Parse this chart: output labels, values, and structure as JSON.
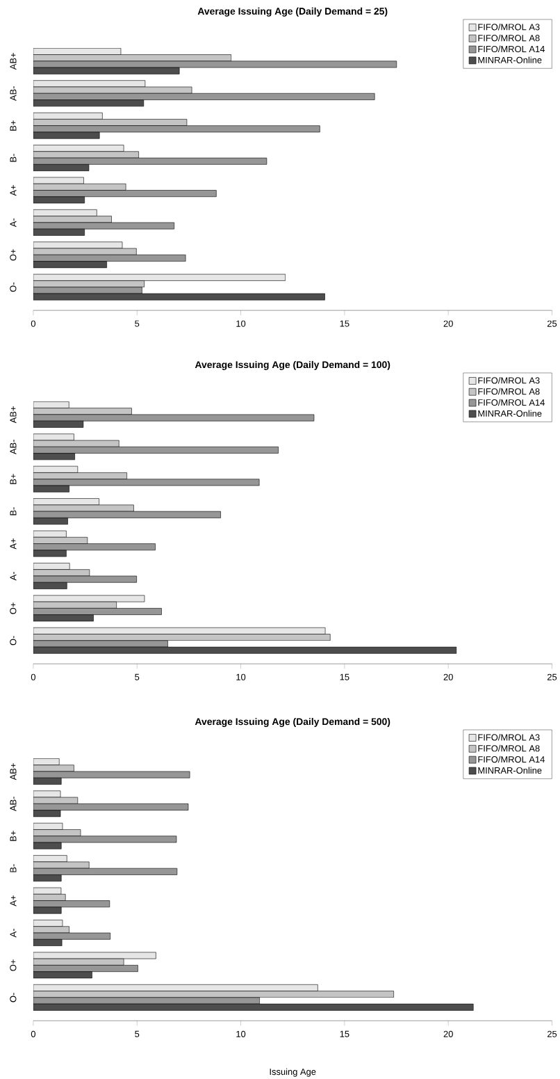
{
  "chart_data": [
    {
      "type": "bar",
      "orientation": "horizontal",
      "title": "Average Issuing Age (Daily Demand = 25)",
      "categories": [
        "AB+",
        "AB-",
        "B+",
        "B-",
        "A+",
        "A-",
        "O+",
        "O-"
      ],
      "xlim": [
        0,
        25
      ],
      "xticks": [
        0,
        5,
        10,
        15,
        20,
        25
      ],
      "legend": "top right",
      "series": [
        {
          "name": "FIFO/MROL A3",
          "color": "#e6e6e6",
          "values": [
            4.22,
            5.39,
            3.33,
            4.36,
            2.43,
            3.06,
            4.29,
            12.15
          ]
        },
        {
          "name": "FIFO/MROL A8",
          "color": "#c4c4c4",
          "values": [
            9.54,
            7.64,
            7.4,
            5.08,
            4.46,
            3.77,
            4.97,
            5.35
          ]
        },
        {
          "name": "FIFO/MROL A14",
          "color": "#969696",
          "values": [
            17.51,
            16.45,
            13.81,
            11.25,
            8.82,
            6.79,
            7.34,
            5.24
          ]
        },
        {
          "name": "MINRAR-Online",
          "color": "#4d4d4d",
          "values": [
            7.04,
            5.32,
            3.19,
            2.68,
            2.47,
            2.47,
            3.54,
            14.05
          ]
        }
      ]
    },
    {
      "type": "bar",
      "orientation": "horizontal",
      "title": "Average Issuing Age (Daily Demand = 100)",
      "categories": [
        "AB+",
        "AB-",
        "B+",
        "B-",
        "A+",
        "A-",
        "O+",
        "O-"
      ],
      "xlim": [
        0,
        25
      ],
      "xticks": [
        0,
        5,
        10,
        15,
        20,
        25
      ],
      "legend": "top right",
      "series": [
        {
          "name": "FIFO/MROL A3",
          "color": "#e6e6e6",
          "values": [
            1.72,
            1.96,
            2.14,
            3.17,
            1.59,
            1.75,
            5.36,
            14.07
          ]
        },
        {
          "name": "FIFO/MROL A8",
          "color": "#c4c4c4",
          "values": [
            4.74,
            4.13,
            4.51,
            4.84,
            2.61,
            2.71,
            4.01,
            14.31
          ]
        },
        {
          "name": "FIFO/MROL A14",
          "color": "#969696",
          "values": [
            13.53,
            11.81,
            10.89,
            9.03,
            5.88,
            4.98,
            6.18,
            6.48
          ]
        },
        {
          "name": "MINRAR-Online",
          "color": "#4d4d4d",
          "values": [
            2.41,
            2.0,
            1.73,
            1.66,
            1.59,
            1.62,
            2.9,
            20.39
          ]
        }
      ]
    },
    {
      "type": "bar",
      "orientation": "horizontal",
      "title": "Average Issuing Age (Daily Demand = 500)",
      "xlabel": "Issuing Age",
      "categories": [
        "AB+",
        "AB-",
        "B+",
        "B-",
        "A+",
        "A-",
        "O+",
        "O-"
      ],
      "xlim": [
        0,
        25
      ],
      "xticks": [
        0,
        5,
        10,
        15,
        20,
        25
      ],
      "legend": "top right",
      "series": [
        {
          "name": "FIFO/MROL A3",
          "color": "#e6e6e6",
          "values": [
            1.25,
            1.31,
            1.41,
            1.62,
            1.34,
            1.41,
            5.91,
            13.71
          ]
        },
        {
          "name": "FIFO/MROL A8",
          "color": "#c4c4c4",
          "values": [
            1.96,
            2.14,
            2.28,
            2.69,
            1.55,
            1.73,
            4.36,
            17.37
          ]
        },
        {
          "name": "FIFO/MROL A14",
          "color": "#969696",
          "values": [
            7.54,
            7.47,
            6.9,
            6.93,
            3.68,
            3.71,
            5.04,
            10.91
          ]
        },
        {
          "name": "MINRAR-Online",
          "color": "#4d4d4d",
          "values": [
            1.35,
            1.31,
            1.35,
            1.35,
            1.35,
            1.38,
            2.83,
            21.21
          ]
        }
      ]
    }
  ]
}
